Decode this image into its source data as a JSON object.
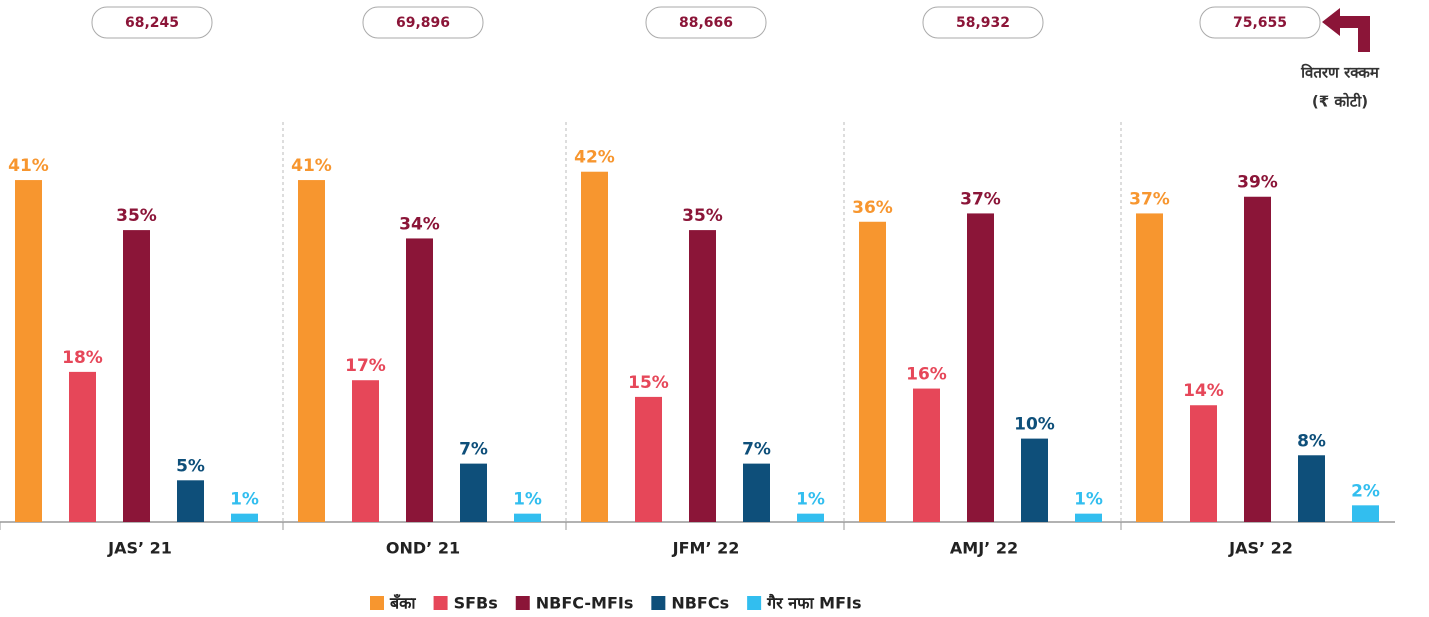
{
  "chart_data": {
    "type": "bar",
    "categories": [
      "JAS’ 21",
      "OND’ 21",
      "JFM’ 22",
      "AMJ’ 22",
      "JAS’ 22"
    ],
    "group_totals": [
      "68,245",
      "69,896",
      "88,666",
      "58,932",
      "75,655"
    ],
    "annotation": [
      "वितरण रक्कम",
      "(₹ कोटी)"
    ],
    "series": [
      {
        "name": "बँका",
        "color": "#f7962f",
        "values": [
          41,
          41,
          42,
          36,
          37
        ],
        "value_labels": [
          "41%",
          "41%",
          "42%",
          "36%",
          "37%"
        ]
      },
      {
        "name": "SFBs",
        "color": "#e64759",
        "values": [
          18,
          17,
          15,
          16,
          14
        ],
        "value_labels": [
          "18%",
          "17%",
          "15%",
          "16%",
          "14%"
        ]
      },
      {
        "name": "NBFC-MFIs",
        "color": "#8b1538",
        "values": [
          35,
          34,
          35,
          37,
          39
        ],
        "value_labels": [
          "35%",
          "34%",
          "35%",
          "37%",
          "39%"
        ]
      },
      {
        "name": "NBFCs",
        "color": "#0e4f7a",
        "values": [
          5,
          7,
          7,
          10,
          8
        ],
        "value_labels": [
          "5%",
          "7%",
          "7%",
          "10%",
          "8%"
        ]
      },
      {
        "name": "गैर नफा MFIs",
        "color": "#32beef",
        "values": [
          1,
          1,
          1,
          1,
          2
        ],
        "value_labels": [
          "1%",
          "1%",
          "1%",
          "1%",
          "2%"
        ]
      }
    ],
    "legend": "bottom"
  }
}
